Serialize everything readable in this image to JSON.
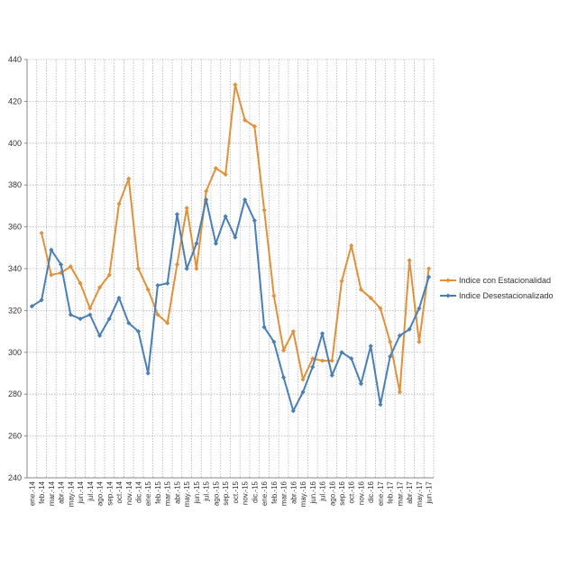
{
  "chart_data": {
    "type": "line",
    "title": "",
    "xlabel": "",
    "ylabel": "",
    "ylim": [
      240,
      440
    ],
    "yticks": [
      240,
      260,
      280,
      300,
      320,
      340,
      360,
      380,
      400,
      420,
      440
    ],
    "grid": "dotted vertical and horizontal",
    "legend_position": "right",
    "categories": [
      "ene.-14",
      "feb.-14",
      "mar.-14",
      "abr.-14",
      "may.-14",
      "jun.-14",
      "jul.-14",
      "ago.-14",
      "sep.-14",
      "oct.-14",
      "nov.-14",
      "dic.-14",
      "ene.-15",
      "feb.-15",
      "mar.-15",
      "abr.-15",
      "may.-15",
      "jun.-15",
      "jul.-15",
      "ago.-15",
      "sep.-15",
      "oct.-15",
      "nov.-15",
      "dic.-15",
      "ene.-16",
      "feb.-16",
      "mar.-16",
      "abr.-16",
      "may.-16",
      "jun.-16",
      "jul.-16",
      "ago.-16",
      "sep.-16",
      "oct.-16",
      "nov.-16",
      "dic.-16",
      "ene.-17",
      "feb.-17",
      "mar.-17",
      "abr.-17",
      "may.-17",
      "jun.-17"
    ],
    "series": [
      {
        "name": "Indice con Estacionalidad",
        "color": "#E0913A",
        "values": [
          null,
          357,
          337,
          338,
          341,
          333,
          321,
          331,
          337,
          371,
          383,
          340,
          330,
          318,
          314,
          342,
          369,
          340,
          377,
          388,
          385,
          428,
          411,
          408,
          368,
          327,
          301,
          310,
          287,
          297,
          296,
          296,
          334,
          351,
          330,
          326,
          321,
          305,
          281,
          344,
          305,
          340
        ]
      },
      {
        "name": "Indice Desestacionalizado",
        "color": "#4A7FB5",
        "values": [
          322,
          325,
          349,
          342,
          318,
          316,
          318,
          308,
          316,
          326,
          314,
          310,
          290,
          332,
          333,
          366,
          340,
          352,
          373,
          352,
          365,
          355,
          373,
          363,
          312,
          305,
          288,
          272,
          281,
          293,
          309,
          289,
          300,
          297,
          285,
          303,
          275,
          298,
          308,
          311,
          321,
          336
        ]
      }
    ]
  }
}
